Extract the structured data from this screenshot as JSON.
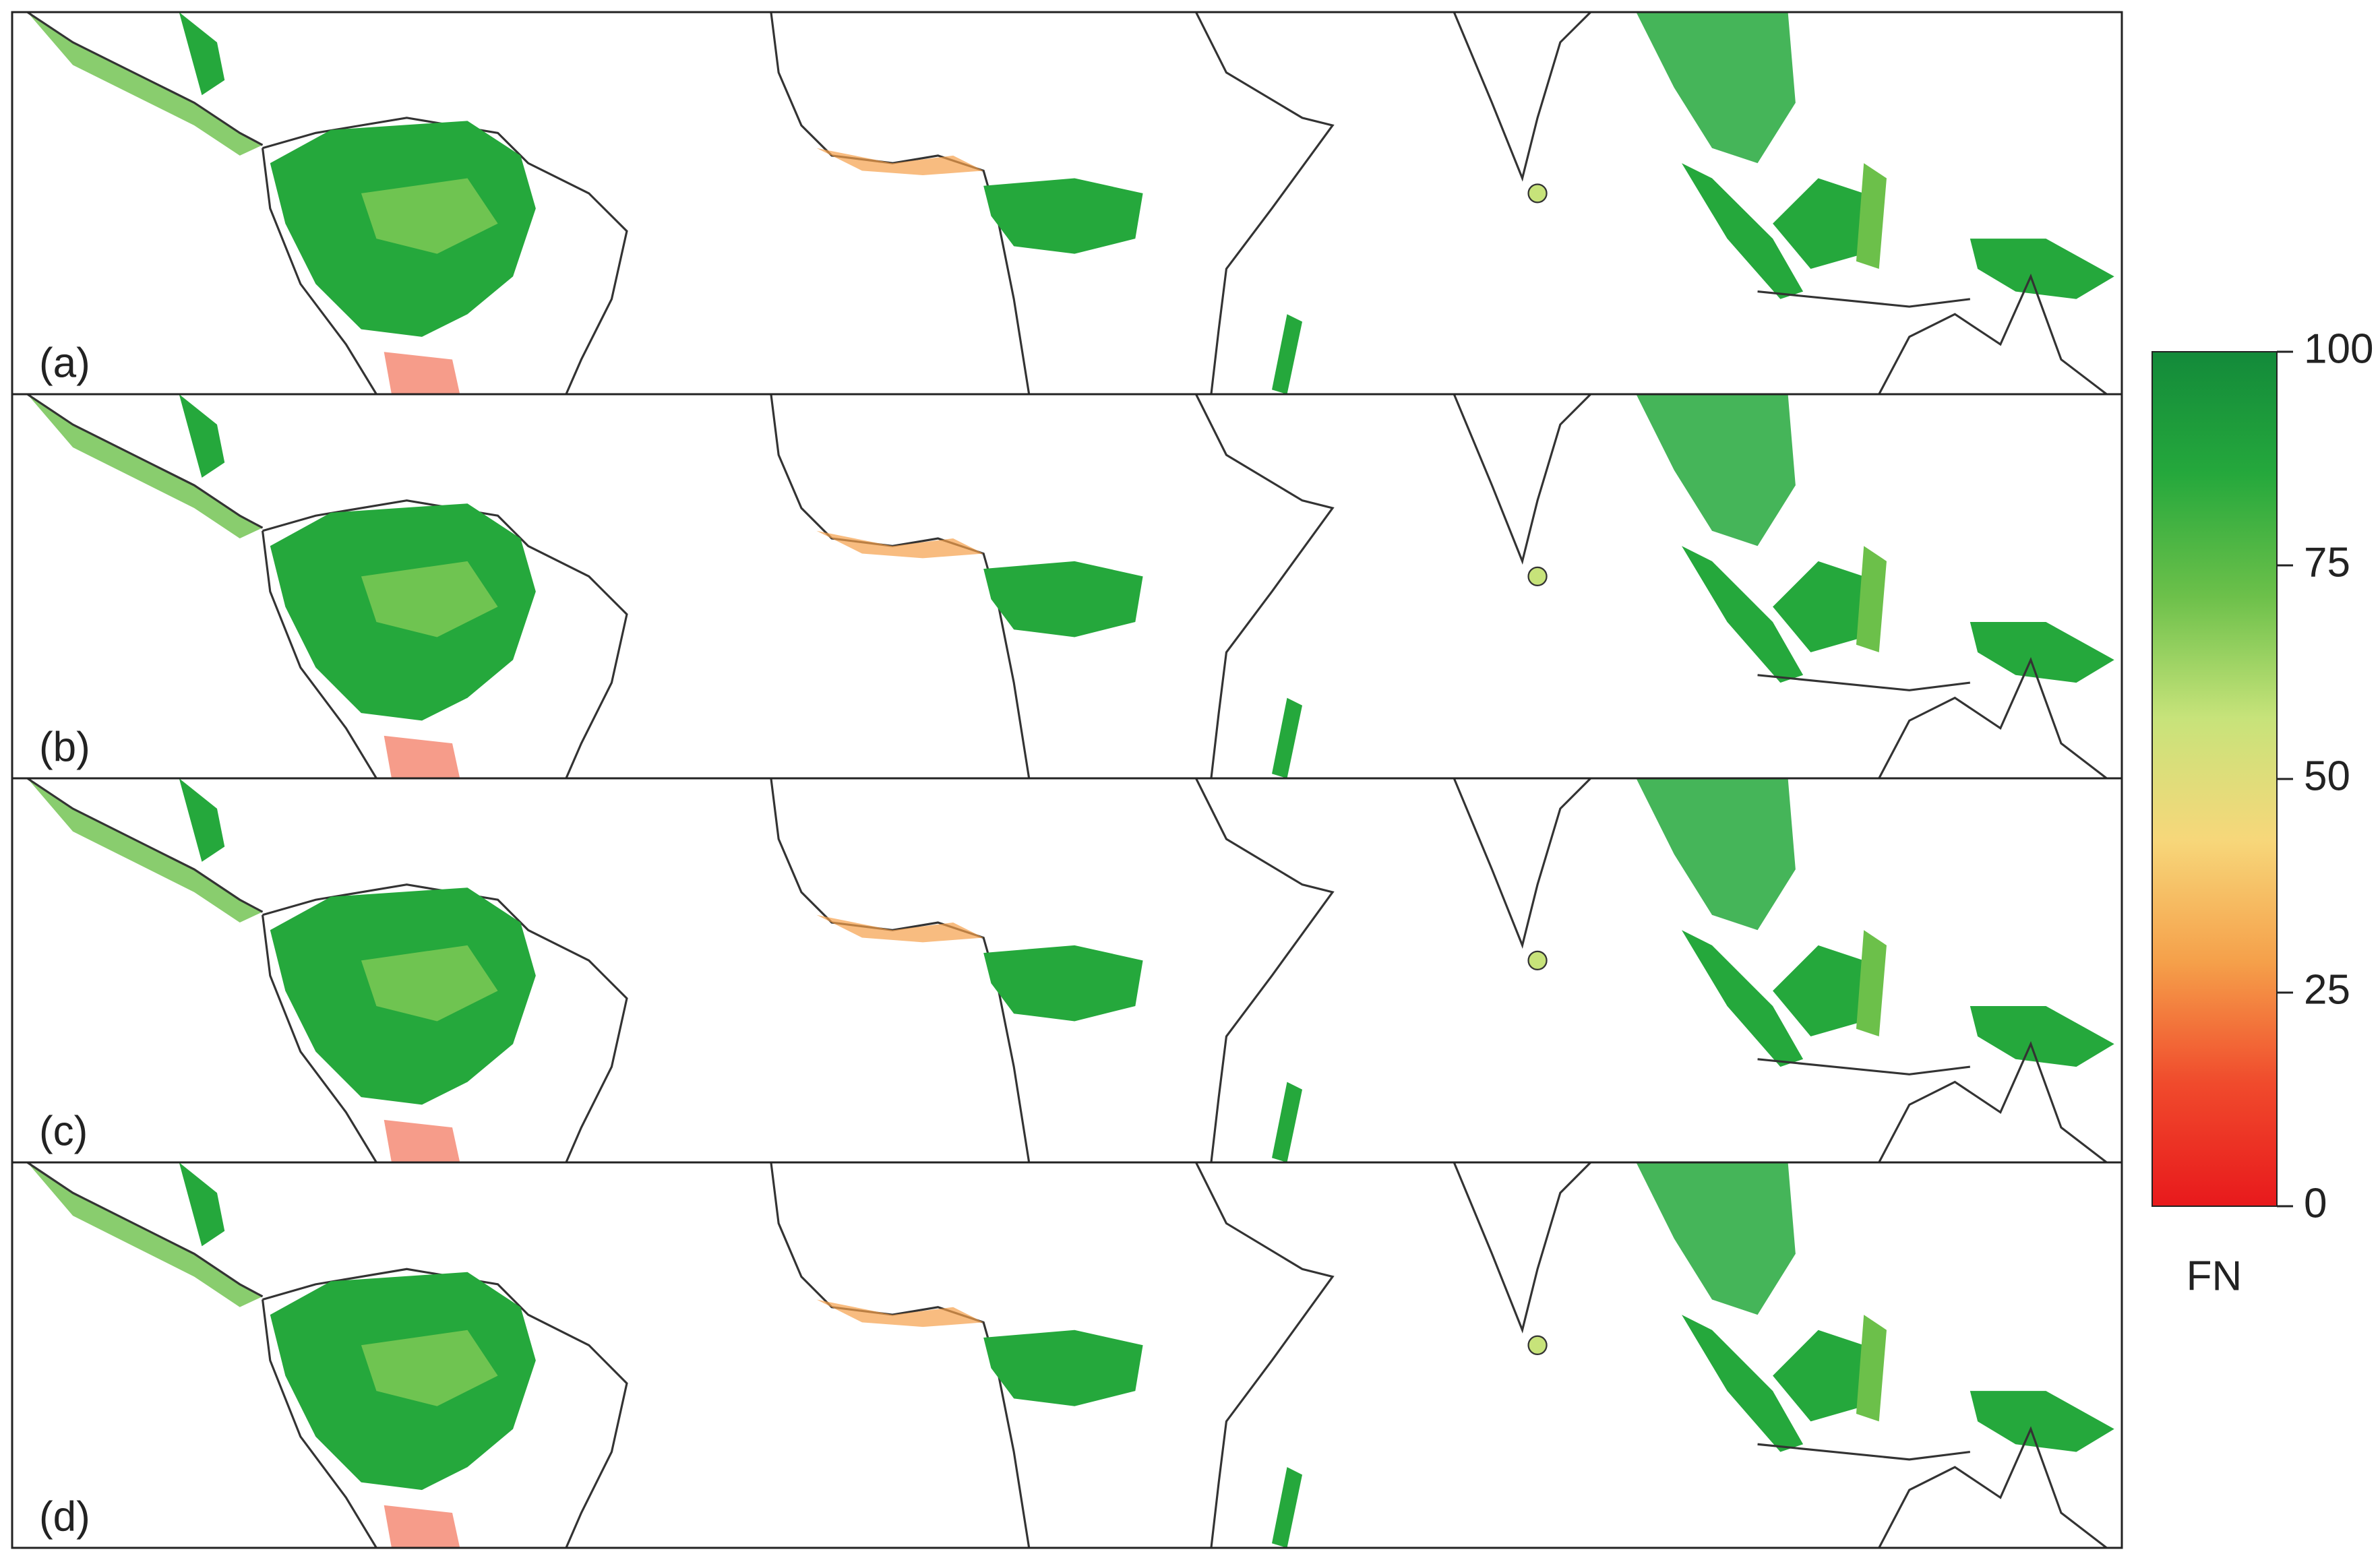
{
  "panels": [
    {
      "label": "(a)"
    },
    {
      "label": "(b)"
    },
    {
      "label": "(c)"
    },
    {
      "label": "(d)"
    }
  ],
  "colorbar": {
    "label": "FN",
    "lim": [
      0,
      100
    ],
    "ticks": [
      0,
      25,
      50,
      75,
      100
    ],
    "colors": [
      "#e8191c",
      "#f04a2c",
      "#f5a04a",
      "#f7d77a",
      "#c7e37a",
      "#6cc04a",
      "#25a83c",
      "#138a3a"
    ]
  }
}
